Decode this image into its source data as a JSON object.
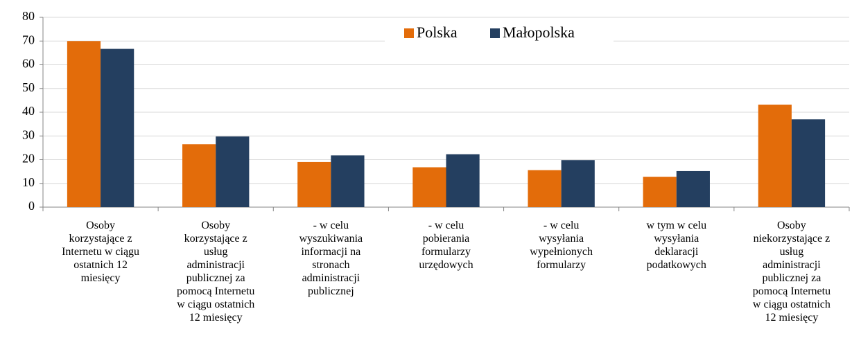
{
  "chart_data": {
    "type": "bar",
    "categories": [
      "Osoby\nkorzystające z\nInternetu w ciągu\nostatnich 12\nmiesięcy",
      "Osoby\nkorzystające z\nusług\nadministracji\npublicznej za\npomocą Internetu\nw ciągu ostatnich\n12 miesięcy",
      "- w celu\nwyszukiwania\ninformacji na\nstronach\nadministracji\npublicznej",
      "- w celu\npobierania\nformularzy\nurzędowych",
      "- w celu\nwysyłania\nwypełnionych\nformularzy",
      " w tym w celu\nwysyłania\ndeklaracji\npodatkowych",
      "Osoby\nniekorzystające z\nusług\nadministracji\npublicznej  za\npomocą Internetu\nw ciągu ostatnich\n12 miesięcy"
    ],
    "series": [
      {
        "name": "Polska",
        "color": "#e36c0a",
        "values": [
          70,
          26.5,
          19,
          16.8,
          15.6,
          12.8,
          43.2
        ]
      },
      {
        "name": "Małopolska",
        "color": "#243f60",
        "values": [
          66.7,
          29.8,
          21.8,
          22.3,
          19.8,
          15.2,
          37
        ]
      }
    ],
    "ylim": [
      0,
      80
    ],
    "yticks": [
      0,
      10,
      20,
      30,
      40,
      50,
      60,
      70,
      80
    ],
    "grid": true,
    "legend": "top"
  }
}
